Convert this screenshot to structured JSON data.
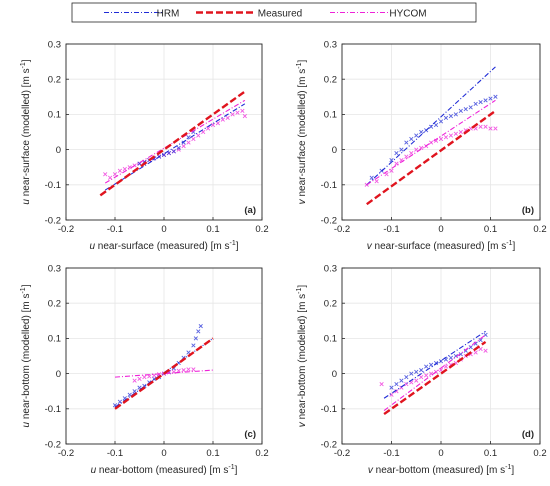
{
  "legend": {
    "items": [
      {
        "label": "HRM",
        "color": "#1f2bd6",
        "style": "dash-dot"
      },
      {
        "label": "Measured",
        "color": "#e0141e",
        "style": "dash-bold"
      },
      {
        "label": "HYCOM",
        "color": "#ee22d8",
        "style": "dash-dot"
      }
    ]
  },
  "colors": {
    "hrm": "#1f2bd6",
    "measured": "#e0141e",
    "hycom": "#ee22d8",
    "axis": "#262626",
    "grid": "#e6e6e6"
  },
  "chart_data": [
    {
      "type": "scatter",
      "panel_label": "(a)",
      "xlabel": {
        "var": "u",
        "text": " near-surface (measured) [m s",
        "exp": "-1",
        "close": "]"
      },
      "ylabel": {
        "var": "u",
        "text": " near-surface (modelled) [m s",
        "exp": "-1",
        "close": "]"
      },
      "xlim": [
        -0.2,
        0.2
      ],
      "ylim": [
        -0.2,
        0.3
      ],
      "xticks": [
        -0.2,
        -0.1,
        0,
        0.1,
        0.2
      ],
      "yticks": [
        -0.2,
        -0.1,
        0,
        0.1,
        0.2,
        0.3
      ],
      "grid": true,
      "fit_lines": [
        {
          "series": "Measured",
          "x": [
            -0.13,
            0.165
          ],
          "y": [
            -0.13,
            0.165
          ]
        },
        {
          "series": "HRM",
          "x": [
            -0.12,
            0.165
          ],
          "y": [
            -0.115,
            0.13
          ]
        },
        {
          "series": "HYCOM",
          "x": [
            -0.12,
            0.165
          ],
          "y": [
            -0.095,
            0.14
          ]
        }
      ],
      "scatter": [
        {
          "series": "HYCOM",
          "points": [
            [
              -0.12,
              -0.07
            ],
            [
              -0.11,
              -0.08
            ],
            [
              -0.1,
              -0.07
            ],
            [
              -0.09,
              -0.06
            ],
            [
              -0.08,
              -0.055
            ],
            [
              -0.07,
              -0.05
            ],
            [
              -0.06,
              -0.045
            ],
            [
              -0.05,
              -0.04
            ],
            [
              -0.04,
              -0.035
            ],
            [
              -0.03,
              -0.03
            ],
            [
              -0.02,
              -0.025
            ],
            [
              -0.01,
              -0.02
            ],
            [
              0,
              -0.015
            ],
            [
              0.01,
              -0.01
            ],
            [
              0.02,
              -0.005
            ],
            [
              0.03,
              0.0
            ],
            [
              0.04,
              0.01
            ],
            [
              0.05,
              0.02
            ],
            [
              0.06,
              0.03
            ],
            [
              0.07,
              0.04
            ],
            [
              0.08,
              0.05
            ],
            [
              0.09,
              0.06
            ],
            [
              0.1,
              0.07
            ],
            [
              0.11,
              0.075
            ],
            [
              0.12,
              0.085
            ],
            [
              0.13,
              0.09
            ],
            [
              0.14,
              0.1
            ],
            [
              0.15,
              0.105
            ],
            [
              0.16,
              0.11
            ],
            [
              0.165,
              0.095
            ]
          ]
        },
        {
          "series": "HRM",
          "points": [
            [
              -0.05,
              -0.04
            ],
            [
              -0.04,
              -0.035
            ],
            [
              -0.03,
              -0.03
            ],
            [
              -0.02,
              -0.025
            ],
            [
              -0.01,
              -0.02
            ],
            [
              0,
              -0.015
            ],
            [
              0.01,
              -0.01
            ],
            [
              0.02,
              -0.005
            ],
            [
              0.03,
              0.005
            ],
            [
              0.04,
              0.02
            ],
            [
              0.05,
              0.035
            ],
            [
              0.06,
              0.05
            ]
          ]
        }
      ]
    },
    {
      "type": "scatter",
      "panel_label": "(b)",
      "xlabel": {
        "var": "v",
        "text": " near-surface (measured) [m s",
        "exp": "-1",
        "close": "]"
      },
      "ylabel": {
        "var": "v",
        "text": " near-surface (modelled) [m s",
        "exp": "-1",
        "close": "]"
      },
      "xlim": [
        -0.2,
        0.2
      ],
      "ylim": [
        -0.2,
        0.3
      ],
      "xticks": [
        -0.2,
        -0.1,
        0,
        0.1,
        0.2
      ],
      "yticks": [
        -0.2,
        -0.1,
        0,
        0.1,
        0.2,
        0.3
      ],
      "grid": true,
      "fit_lines": [
        {
          "series": "Measured",
          "x": [
            -0.15,
            0.11
          ],
          "y": [
            -0.155,
            0.11
          ]
        },
        {
          "series": "HRM",
          "x": [
            -0.15,
            0.11
          ],
          "y": [
            -0.1,
            0.235
          ]
        },
        {
          "series": "HYCOM",
          "x": [
            -0.15,
            0.11
          ],
          "y": [
            -0.1,
            0.14
          ]
        }
      ],
      "scatter": [
        {
          "series": "HRM",
          "points": [
            [
              -0.14,
              -0.08
            ],
            [
              -0.12,
              -0.06
            ],
            [
              -0.1,
              -0.03
            ],
            [
              -0.09,
              -0.01
            ],
            [
              -0.08,
              0.0
            ],
            [
              -0.07,
              0.02
            ],
            [
              -0.06,
              0.03
            ],
            [
              -0.05,
              0.04
            ],
            [
              -0.04,
              0.05
            ],
            [
              -0.03,
              0.055
            ],
            [
              -0.02,
              0.065
            ],
            [
              -0.01,
              0.07
            ],
            [
              0,
              0.08
            ],
            [
              0.01,
              0.09
            ],
            [
              0.02,
              0.095
            ],
            [
              0.03,
              0.1
            ],
            [
              0.04,
              0.11
            ],
            [
              0.05,
              0.115
            ],
            [
              0.06,
              0.12
            ],
            [
              0.07,
              0.13
            ],
            [
              0.08,
              0.135
            ],
            [
              0.09,
              0.14
            ],
            [
              0.1,
              0.145
            ],
            [
              0.11,
              0.15
            ]
          ]
        },
        {
          "series": "HYCOM",
          "points": [
            [
              -0.15,
              -0.1
            ],
            [
              -0.13,
              -0.09
            ],
            [
              -0.11,
              -0.07
            ],
            [
              -0.1,
              -0.06
            ],
            [
              -0.09,
              -0.04
            ],
            [
              -0.08,
              -0.03
            ],
            [
              -0.07,
              -0.02
            ],
            [
              -0.06,
              -0.01
            ],
            [
              -0.05,
              0.0
            ],
            [
              -0.04,
              0.005
            ],
            [
              -0.03,
              0.01
            ],
            [
              -0.02,
              0.02
            ],
            [
              -0.01,
              0.025
            ],
            [
              0,
              0.03
            ],
            [
              0.01,
              0.035
            ],
            [
              0.02,
              0.04
            ],
            [
              0.03,
              0.045
            ],
            [
              0.04,
              0.05
            ],
            [
              0.05,
              0.055
            ],
            [
              0.06,
              0.06
            ],
            [
              0.07,
              0.06
            ],
            [
              0.08,
              0.065
            ],
            [
              0.09,
              0.065
            ],
            [
              0.1,
              0.06
            ],
            [
              0.11,
              0.06
            ]
          ]
        }
      ]
    },
    {
      "type": "scatter",
      "panel_label": "(c)",
      "xlabel": {
        "var": "u",
        "text": " near-bottom (measured) [m s",
        "exp": "-1",
        "close": "]"
      },
      "ylabel": {
        "var": "u",
        "text": " near-bottom (modelled) [m s",
        "exp": "-1",
        "close": "]"
      },
      "xlim": [
        -0.2,
        0.2
      ],
      "ylim": [
        -0.2,
        0.3
      ],
      "xticks": [
        -0.2,
        -0.1,
        0,
        0.1,
        0.2
      ],
      "yticks": [
        -0.2,
        -0.1,
        0,
        0.1,
        0.2,
        0.3
      ],
      "grid": true,
      "fit_lines": [
        {
          "series": "Measured",
          "x": [
            -0.1,
            0.1
          ],
          "y": [
            -0.1,
            0.1
          ]
        },
        {
          "series": "HRM",
          "x": [
            -0.1,
            0.1
          ],
          "y": [
            -0.095,
            0.1
          ]
        },
        {
          "series": "HYCOM",
          "x": [
            -0.1,
            0.1
          ],
          "y": [
            -0.01,
            0.01
          ]
        }
      ],
      "scatter": [
        {
          "series": "HRM",
          "points": [
            [
              -0.1,
              -0.09
            ],
            [
              -0.09,
              -0.08
            ],
            [
              -0.08,
              -0.07
            ],
            [
              -0.07,
              -0.06
            ],
            [
              -0.06,
              -0.05
            ],
            [
              -0.05,
              -0.04
            ],
            [
              -0.04,
              -0.035
            ],
            [
              -0.03,
              -0.025
            ],
            [
              -0.02,
              -0.015
            ],
            [
              -0.01,
              -0.01
            ],
            [
              0,
              0.0
            ],
            [
              0.01,
              0.005
            ],
            [
              0.02,
              0.015
            ],
            [
              0.03,
              0.03
            ],
            [
              0.04,
              0.045
            ],
            [
              0.05,
              0.06
            ],
            [
              0.06,
              0.08
            ],
            [
              0.065,
              0.1
            ],
            [
              0.07,
              0.12
            ],
            [
              0.075,
              0.135
            ]
          ]
        },
        {
          "series": "HYCOM",
          "points": [
            [
              -0.06,
              -0.02
            ],
            [
              -0.05,
              -0.015
            ],
            [
              -0.04,
              -0.01
            ],
            [
              -0.03,
              -0.008
            ],
            [
              -0.02,
              -0.005
            ],
            [
              -0.01,
              -0.002
            ],
            [
              0,
              0.0
            ],
            [
              0.01,
              0.003
            ],
            [
              0.02,
              0.005
            ],
            [
              0.03,
              0.008
            ],
            [
              0.04,
              0.01
            ],
            [
              0.05,
              0.012
            ],
            [
              0.06,
              0.012
            ]
          ]
        }
      ]
    },
    {
      "type": "scatter",
      "panel_label": "(d)",
      "xlabel": {
        "var": "v",
        "text": " near-bottom (measured) [m s",
        "exp": "-1",
        "close": "]"
      },
      "ylabel": {
        "var": "v",
        "text": " near-bottom (modelled) [m s",
        "exp": "-1",
        "close": "]"
      },
      "xlim": [
        -0.2,
        0.2
      ],
      "ylim": [
        -0.2,
        0.3
      ],
      "xticks": [
        -0.2,
        -0.1,
        0,
        0.1,
        0.2
      ],
      "yticks": [
        -0.2,
        -0.1,
        0,
        0.1,
        0.2,
        0.3
      ],
      "grid": true,
      "fit_lines": [
        {
          "series": "Measured",
          "x": [
            -0.115,
            0.09
          ],
          "y": [
            -0.115,
            0.09
          ]
        },
        {
          "series": "HRM",
          "x": [
            -0.115,
            0.09
          ],
          "y": [
            -0.07,
            0.12
          ]
        },
        {
          "series": "HYCOM",
          "x": [
            -0.115,
            0.09
          ],
          "y": [
            -0.105,
            0.11
          ]
        }
      ],
      "scatter": [
        {
          "series": "HRM",
          "points": [
            [
              -0.1,
              -0.04
            ],
            [
              -0.09,
              -0.03
            ],
            [
              -0.08,
              -0.02
            ],
            [
              -0.07,
              -0.01
            ],
            [
              -0.06,
              0.0
            ],
            [
              -0.05,
              0.005
            ],
            [
              -0.04,
              0.01
            ],
            [
              -0.03,
              0.02
            ],
            [
              -0.02,
              0.025
            ],
            [
              -0.01,
              0.03
            ],
            [
              0,
              0.035
            ],
            [
              0.01,
              0.04
            ],
            [
              0.02,
              0.045
            ],
            [
              0.03,
              0.05
            ],
            [
              0.04,
              0.055
            ],
            [
              0.05,
              0.065
            ],
            [
              0.06,
              0.075
            ],
            [
              0.07,
              0.085
            ],
            [
              0.08,
              0.095
            ],
            [
              0.09,
              0.11
            ]
          ]
        },
        {
          "series": "HYCOM",
          "points": [
            [
              -0.12,
              -0.03
            ],
            [
              -0.1,
              -0.06
            ],
            [
              -0.09,
              -0.05
            ],
            [
              -0.08,
              -0.04
            ],
            [
              -0.07,
              -0.03
            ],
            [
              -0.06,
              -0.025
            ],
            [
              -0.05,
              -0.02
            ],
            [
              -0.04,
              -0.01
            ],
            [
              -0.03,
              -0.005
            ],
            [
              -0.02,
              0.0
            ],
            [
              -0.01,
              0.005
            ],
            [
              0,
              0.01
            ],
            [
              0.01,
              0.02
            ],
            [
              0.02,
              0.025
            ],
            [
              0.03,
              0.03
            ],
            [
              0.04,
              0.04
            ],
            [
              0.05,
              0.05
            ],
            [
              0.06,
              0.055
            ],
            [
              0.07,
              0.06
            ],
            [
              0.08,
              0.07
            ],
            [
              0.09,
              0.065
            ]
          ]
        }
      ]
    }
  ]
}
